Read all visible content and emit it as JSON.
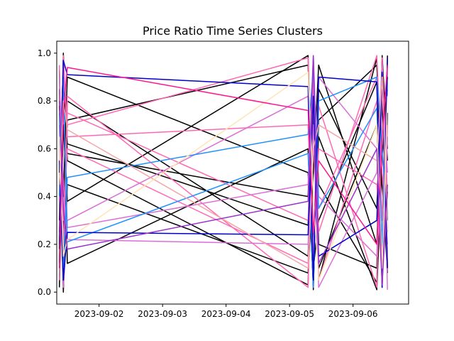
{
  "chart_data": {
    "type": "line",
    "title": "Price Ratio Time Series Clusters",
    "xlabel": "",
    "ylabel": "",
    "x_type": "date",
    "xlim": [
      "2023-09-01 08:00",
      "2023-09-06 21:00"
    ],
    "ylim": [
      -0.05,
      1.05
    ],
    "x_ticks": [
      {
        "value": "2023-09-02 00:00",
        "label": "2023-09-02"
      },
      {
        "value": "2023-09-03 00:00",
        "label": "2023-09-03"
      },
      {
        "value": "2023-09-04 00:00",
        "label": "2023-09-04"
      },
      {
        "value": "2023-09-05 00:00",
        "label": "2023-09-05"
      },
      {
        "value": "2023-09-06 00:00",
        "label": "2023-09-06"
      }
    ],
    "y_ticks": [
      {
        "value": 0.0,
        "label": "0.0"
      },
      {
        "value": 0.2,
        "label": "0.2"
      },
      {
        "value": 0.4,
        "label": "0.4"
      },
      {
        "value": 0.6,
        "label": "0.6"
      },
      {
        "value": 0.8,
        "label": "0.8"
      },
      {
        "value": 1.0,
        "label": "1.0"
      }
    ],
    "grid": false,
    "legend": "none",
    "colors": [
      "#000000",
      "#ff69b4",
      "#da70d6",
      "#1e90ff",
      "#0000cd",
      "#f4a6a6",
      "#ffe4b5",
      "#ff1493",
      "#9932cc"
    ],
    "series": [
      {
        "color": "#000000",
        "x": [
          "2023-09-01 09:00",
          "2023-09-01 10:30",
          "2023-09-01 12:00",
          "2023-09-05 07:00",
          "2023-09-05 09:00",
          "2023-09-05 11:00",
          "2023-09-06 09:00",
          "2023-09-06 11:00",
          "2023-09-06 13:00"
        ],
        "y": [
          0.12,
          0.98,
          0.55,
          0.03,
          0.92,
          0.45,
          0.04,
          0.99,
          0.6
        ]
      },
      {
        "color": "#000000",
        "x": [
          "2023-09-01 09:00",
          "2023-09-01 10:30",
          "2023-09-01 12:00",
          "2023-09-05 07:00",
          "2023-09-05 09:00",
          "2023-09-05 11:00",
          "2023-09-06 09:00",
          "2023-09-06 11:00",
          "2023-09-06 13:00"
        ],
        "y": [
          0.85,
          0.05,
          0.72,
          0.95,
          0.1,
          0.3,
          0.88,
          0.02,
          0.75
        ]
      },
      {
        "color": "#000000",
        "x": [
          "2023-09-01 09:00",
          "2023-09-01 10:30",
          "2023-09-01 12:00",
          "2023-09-05 07:00",
          "2023-09-05 09:00",
          "2023-09-05 11:00",
          "2023-09-06 09:00",
          "2023-09-06 11:00",
          "2023-09-06 13:00"
        ],
        "y": [
          0.5,
          0.95,
          0.12,
          0.6,
          0.01,
          0.85,
          0.35,
          0.97,
          0.1
        ]
      },
      {
        "color": "#000000",
        "x": [
          "2023-09-01 09:00",
          "2023-09-01 10:30",
          "2023-09-01 12:00",
          "2023-09-05 07:00",
          "2023-09-05 09:00",
          "2023-09-05 11:00",
          "2023-09-06 09:00",
          "2023-09-06 11:00",
          "2023-09-06 13:00"
        ],
        "y": [
          0.02,
          0.7,
          0.38,
          0.99,
          0.2,
          0.65,
          0.01,
          0.55,
          0.9
        ]
      },
      {
        "color": "#000000",
        "x": [
          "2023-09-01 09:00",
          "2023-09-01 10:30",
          "2023-09-01 12:00",
          "2023-09-05 07:00",
          "2023-09-05 09:00",
          "2023-09-05 11:00",
          "2023-09-06 09:00",
          "2023-09-06 11:00",
          "2023-09-06 13:00"
        ],
        "y": [
          0.93,
          0.22,
          0.8,
          0.15,
          0.75,
          0.05,
          0.98,
          0.15,
          0.42
        ]
      },
      {
        "color": "#000000",
        "x": [
          "2023-09-01 09:00",
          "2023-09-01 10:30",
          "2023-09-01 12:00",
          "2023-09-05 07:00",
          "2023-09-05 09:00",
          "2023-09-05 11:00",
          "2023-09-06 09:00",
          "2023-09-06 11:00",
          "2023-09-06 13:00"
        ],
        "y": [
          0.3,
          1.0,
          0.58,
          0.4,
          0.97,
          0.1,
          0.7,
          0.05,
          0.99
        ]
      },
      {
        "color": "#000000",
        "x": [
          "2023-09-01 09:00",
          "2023-09-01 10:30",
          "2023-09-01 12:00",
          "2023-09-05 07:00",
          "2023-09-05 09:00",
          "2023-09-05 11:00",
          "2023-09-06 09:00",
          "2023-09-06 11:00",
          "2023-09-06 13:00"
        ],
        "y": [
          0.65,
          0.0,
          0.45,
          0.08,
          0.5,
          0.95,
          0.2,
          0.8,
          0.3
        ]
      },
      {
        "color": "#000000",
        "x": [
          "2023-09-01 09:00",
          "2023-09-01 10:30",
          "2023-09-01 12:00",
          "2023-09-05 07:00",
          "2023-09-05 09:00",
          "2023-09-05 11:00",
          "2023-09-06 09:00",
          "2023-09-06 11:00",
          "2023-09-06 13:00"
        ],
        "y": [
          0.78,
          0.4,
          0.9,
          0.5,
          0.03,
          0.72,
          0.95,
          0.45,
          0.08
        ]
      },
      {
        "color": "#000000",
        "x": [
          "2023-09-01 09:00",
          "2023-09-01 10:30",
          "2023-09-01 12:00",
          "2023-09-05 07:00",
          "2023-09-05 09:00",
          "2023-09-05 11:00",
          "2023-09-06 09:00",
          "2023-09-06 11:00",
          "2023-09-06 13:00"
        ],
        "y": [
          0.18,
          0.88,
          0.62,
          0.28,
          0.9,
          0.2,
          0.1,
          0.92,
          0.55
        ]
      },
      {
        "color": "#ff69b4",
        "x": [
          "2023-09-01 09:00",
          "2023-09-01 10:30",
          "2023-09-01 12:00",
          "2023-09-05 07:00",
          "2023-09-05 09:00",
          "2023-09-05 11:00",
          "2023-09-06 09:00",
          "2023-09-06 11:00",
          "2023-09-06 13:00"
        ],
        "y": [
          0.95,
          0.1,
          0.82,
          0.02,
          0.8,
          0.35,
          0.9,
          0.12,
          0.7
        ]
      },
      {
        "color": "#ff69b4",
        "x": [
          "2023-09-01 09:00",
          "2023-09-01 10:30",
          "2023-09-01 12:00",
          "2023-09-05 07:00",
          "2023-09-05 09:00",
          "2023-09-05 11:00",
          "2023-09-06 09:00",
          "2023-09-06 11:00",
          "2023-09-06 13:00"
        ],
        "y": [
          0.05,
          0.92,
          0.7,
          0.98,
          0.05,
          0.78,
          0.02,
          0.98,
          0.4
        ]
      },
      {
        "color": "#ff69b4",
        "x": [
          "2023-09-01 09:00",
          "2023-09-01 10:30",
          "2023-09-01 12:00",
          "2023-09-05 07:00",
          "2023-09-05 09:00",
          "2023-09-05 11:00",
          "2023-09-06 09:00",
          "2023-09-06 11:00",
          "2023-09-06 13:00"
        ],
        "y": [
          0.6,
          0.2,
          0.75,
          0.3,
          0.96,
          0.05,
          0.8,
          0.3,
          0.95
        ]
      },
      {
        "color": "#ff69b4",
        "x": [
          "2023-09-01 09:00",
          "2023-09-01 10:30",
          "2023-09-01 12:00",
          "2023-09-05 07:00",
          "2023-09-05 09:00",
          "2023-09-05 11:00",
          "2023-09-06 09:00",
          "2023-09-06 11:00",
          "2023-09-06 13:00"
        ],
        "y": [
          0.38,
          0.99,
          0.65,
          0.7,
          0.12,
          0.6,
          0.45,
          0.04,
          0.85
        ]
      },
      {
        "color": "#ff69b4",
        "x": [
          "2023-09-01 09:00",
          "2023-09-01 10:30",
          "2023-09-01 12:00",
          "2023-09-05 07:00",
          "2023-09-05 09:00",
          "2023-09-05 11:00",
          "2023-09-06 09:00",
          "2023-09-06 11:00",
          "2023-09-06 13:00"
        ],
        "y": [
          0.88,
          0.3,
          0.6,
          0.12,
          0.88,
          0.25,
          0.99,
          0.5,
          0.2
        ]
      },
      {
        "color": "#da70d6",
        "x": [
          "2023-09-01 09:00",
          "2023-09-01 10:30",
          "2023-09-01 12:00",
          "2023-09-05 07:00",
          "2023-09-05 09:00",
          "2023-09-05 11:00",
          "2023-09-06 09:00",
          "2023-09-06 11:00",
          "2023-09-06 13:00"
        ],
        "y": [
          0.7,
          0.02,
          0.3,
          0.82,
          0.15,
          0.9,
          0.6,
          0.02,
          0.65
        ]
      },
      {
        "color": "#da70d6",
        "x": [
          "2023-09-01 09:00",
          "2023-09-01 10:30",
          "2023-09-01 12:00",
          "2023-09-05 07:00",
          "2023-09-05 09:00",
          "2023-09-05 11:00",
          "2023-09-06 09:00",
          "2023-09-06 11:00",
          "2023-09-06 13:00"
        ],
        "y": [
          0.25,
          0.85,
          0.27,
          0.45,
          0.99,
          0.4,
          0.15,
          0.85,
          0.5
        ]
      },
      {
        "color": "#da70d6",
        "x": [
          "2023-09-01 09:00",
          "2023-09-01 10:30",
          "2023-09-01 12:00",
          "2023-09-05 07:00",
          "2023-09-05 09:00",
          "2023-09-05 11:00",
          "2023-09-06 09:00",
          "2023-09-06 11:00",
          "2023-09-06 13:00"
        ],
        "y": [
          0.9,
          0.45,
          0.22,
          0.2,
          0.7,
          0.02,
          0.5,
          0.95,
          0.01
        ]
      },
      {
        "color": "#1e90ff",
        "x": [
          "2023-09-01 09:00",
          "2023-09-01 10:30",
          "2023-09-01 12:00",
          "2023-09-05 07:00",
          "2023-09-05 09:00",
          "2023-09-05 11:00",
          "2023-09-06 09:00",
          "2023-09-06 11:00",
          "2023-09-06 13:00"
        ],
        "y": [
          0.4,
          0.9,
          0.21,
          0.58,
          0.02,
          0.8,
          0.9,
          0.6,
          0.3
        ]
      },
      {
        "color": "#1e90ff",
        "x": [
          "2023-09-01 09:00",
          "2023-09-01 10:30",
          "2023-09-01 12:00",
          "2023-09-05 07:00",
          "2023-09-05 09:00",
          "2023-09-05 11:00",
          "2023-09-06 09:00",
          "2023-09-06 11:00",
          "2023-09-06 13:00"
        ],
        "y": [
          0.75,
          0.1,
          0.48,
          0.66,
          0.93,
          0.35,
          0.77,
          0.2,
          0.88
        ]
      },
      {
        "color": "#0000cd",
        "x": [
          "2023-09-01 09:00",
          "2023-09-01 10:30",
          "2023-09-01 12:00",
          "2023-09-05 07:00",
          "2023-09-05 09:00",
          "2023-09-05 11:00",
          "2023-09-06 09:00",
          "2023-09-06 11:00",
          "2023-09-06 13:00"
        ],
        "y": [
          0.2,
          0.97,
          0.91,
          0.86,
          0.05,
          0.9,
          0.88,
          0.02,
          0.98
        ]
      },
      {
        "color": "#0000cd",
        "x": [
          "2023-09-01 09:00",
          "2023-09-01 10:30",
          "2023-09-01 12:00",
          "2023-09-05 07:00",
          "2023-09-05 09:00",
          "2023-09-05 11:00",
          "2023-09-06 09:00",
          "2023-09-06 11:00",
          "2023-09-06 13:00"
        ],
        "y": [
          0.55,
          0.05,
          0.25,
          0.24,
          0.82,
          0.15,
          0.3,
          0.92,
          0.1
        ]
      },
      {
        "color": "#f4a6a6",
        "x": [
          "2023-09-01 09:00",
          "2023-09-01 10:30",
          "2023-09-01 12:00",
          "2023-09-05 07:00",
          "2023-09-05 09:00",
          "2023-09-05 11:00",
          "2023-09-06 09:00",
          "2023-09-06 11:00",
          "2023-09-06 13:00"
        ],
        "y": [
          0.45,
          0.8,
          0.68,
          0.1,
          0.6,
          0.7,
          0.55,
          0.9,
          0.25
        ]
      },
      {
        "color": "#ffe4b5",
        "x": [
          "2023-09-01 09:00",
          "2023-09-01 10:30",
          "2023-09-01 12:00",
          "2023-09-05 07:00",
          "2023-09-05 09:00",
          "2023-09-05 11:00",
          "2023-09-06 09:00",
          "2023-09-06 11:00",
          "2023-09-06 13:00"
        ],
        "y": [
          0.65,
          0.15,
          0.22,
          0.92,
          0.4,
          0.05,
          0.7,
          0.1,
          0.82
        ]
      },
      {
        "color": "#ff1493",
        "x": [
          "2023-09-01 09:00",
          "2023-09-01 10:30",
          "2023-09-01 12:00",
          "2023-09-05 07:00",
          "2023-09-05 09:00",
          "2023-09-05 11:00",
          "2023-09-06 09:00",
          "2023-09-06 11:00",
          "2023-09-06 13:00"
        ],
        "y": [
          0.1,
          0.75,
          0.94,
          0.76,
          0.25,
          0.55,
          0.2,
          0.65,
          0.95
        ]
      },
      {
        "color": "#9932cc",
        "x": [
          "2023-09-01 09:00",
          "2023-09-01 10:30",
          "2023-09-01 12:00",
          "2023-09-05 07:00",
          "2023-09-05 09:00",
          "2023-09-05 11:00",
          "2023-09-06 09:00",
          "2023-09-06 11:00",
          "2023-09-06 13:00"
        ],
        "y": [
          0.8,
          0.35,
          0.18,
          0.38,
          0.99,
          0.12,
          0.6,
          0.03,
          0.45
        ]
      }
    ]
  }
}
